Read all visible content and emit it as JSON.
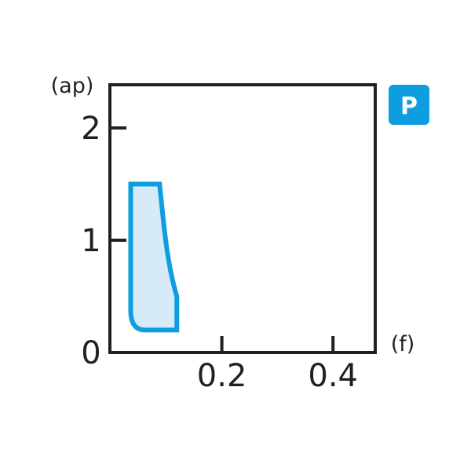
{
  "chart_data": {
    "type": "area",
    "xlabel": "(f)",
    "ylabel": "(ap)",
    "xlim": [
      0,
      0.48
    ],
    "ylim": [
      0,
      2.38
    ],
    "x_ticks": [
      {
        "value": 0.2,
        "label": "0.2"
      },
      {
        "value": 0.4,
        "label": "0.4"
      }
    ],
    "y_ticks": [
      {
        "value": 0,
        "label": "0"
      },
      {
        "value": 1,
        "label": "1"
      },
      {
        "value": 2,
        "label": "2"
      }
    ],
    "grid": false,
    "region": {
      "points": [
        {
          "f": 0.036,
          "ap": 1.5
        },
        {
          "f": 0.088,
          "ap": 1.5
        },
        {
          "f": 0.119,
          "ap": 0.5
        },
        {
          "f": 0.119,
          "ap": 0.2
        },
        {
          "f": 0.036,
          "ap": 0.2
        }
      ],
      "stroke_color": "#0e9ee0",
      "fill_color": "#d6eaf8"
    },
    "badge": {
      "label": "P",
      "color": "#0e9ee0"
    }
  }
}
